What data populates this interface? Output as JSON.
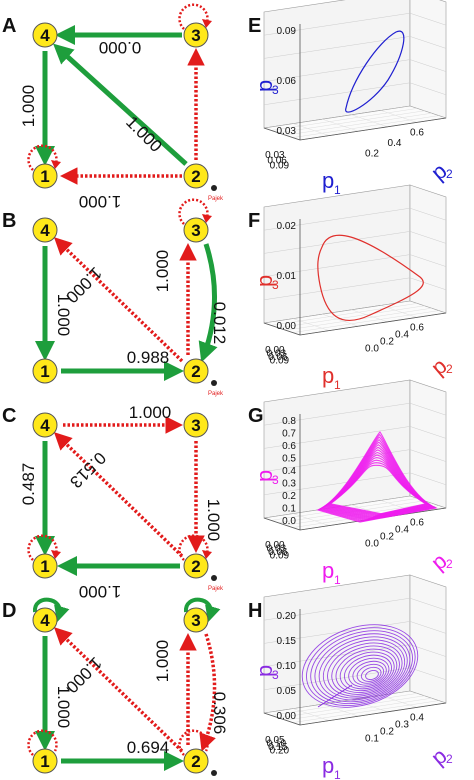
{
  "panels": {
    "A": "A",
    "B": "B",
    "C": "C",
    "D": "D",
    "E": "E",
    "F": "F",
    "G": "G",
    "H": "H"
  },
  "nodes": {
    "n1": "1",
    "n2": "2",
    "n3": "3",
    "n4": "4"
  },
  "pajek": "Pajek",
  "edge_weights": {
    "A": {
      "top": "0.000",
      "left": "1.000",
      "diag": "1.000",
      "bottom": "1.000"
    },
    "B": {
      "diag": "1.000",
      "left": "1.000",
      "right_dotted": "1.000",
      "right_solid": "0.012",
      "bottom": "0.988"
    },
    "C": {
      "top": "1.000",
      "left": "0.487",
      "diag": "0.513",
      "right": "1.000",
      "bottom": "1.000"
    },
    "D": {
      "diag": "1.000",
      "left": "1.000",
      "right_dotted": "1.000",
      "right_curve": "0.306",
      "bottom": "0.694"
    }
  },
  "axis_labels": {
    "p1": "p",
    "p2": "p",
    "p3": "p",
    "sub1": "1",
    "sub2": "2",
    "sub3": "3"
  },
  "plots": {
    "E": {
      "color": "#1f1fd0",
      "z_ticks": [
        "0.09",
        "0.06",
        "0.03"
      ],
      "x_ticks": [
        "0.03",
        "0.06",
        "0.09"
      ],
      "y_ticks": [
        "0.2",
        "0.4",
        "0.6"
      ]
    },
    "F": {
      "color": "#e0302c",
      "z_ticks": [
        "0.02",
        "0.01",
        "0.00"
      ],
      "x_ticks": [
        "0.00",
        "0.03",
        "0.06",
        "0.09"
      ],
      "y_ticks": [
        "0.0",
        "0.2",
        "0.4",
        "0.6"
      ]
    },
    "G": {
      "color": "#ee1cee",
      "z_ticks": [
        "0.8",
        "0.7",
        "0.6",
        "0.5",
        "0.4",
        "0.3",
        "0.2",
        "0.1",
        "0.0"
      ],
      "x_ticks": [
        "0.00",
        "0.03",
        "0.06",
        "0.09"
      ],
      "y_ticks": [
        "0.0",
        "0.2",
        "0.4",
        "0.6"
      ]
    },
    "H": {
      "color": "#8a2be2",
      "z_ticks": [
        "0.20",
        "0.15",
        "0.10",
        "0.05",
        "0.00"
      ],
      "x_ticks": [
        "0.05",
        "0.10",
        "0.15",
        "0.20"
      ],
      "y_ticks": [
        "0.1",
        "0.2",
        "0.3",
        "0.4"
      ]
    }
  },
  "colors": {
    "green": "#1e9e3c",
    "red": "#e21b1b",
    "node": "#ffe81a"
  }
}
